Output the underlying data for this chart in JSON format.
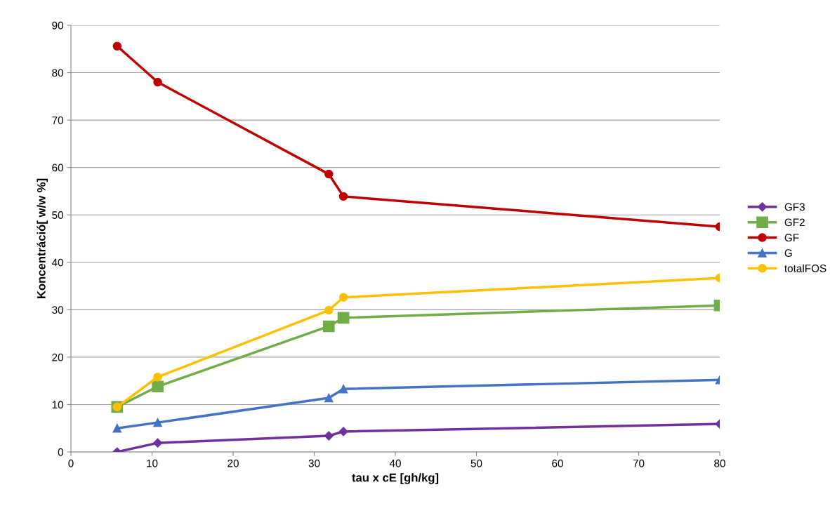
{
  "chart_data": {
    "type": "line",
    "xlabel": "tau x cE [gh/kg]",
    "ylabel": "Koncentráció[ w/w %]",
    "xlim": [
      0,
      80
    ],
    "xticks": [
      0,
      10,
      20,
      30,
      40,
      50,
      60,
      70,
      80
    ],
    "ylim": [
      0,
      90
    ],
    "yticks": [
      0,
      10,
      20,
      30,
      40,
      50,
      60,
      70,
      80,
      90
    ],
    "grid": "y",
    "legend": "right",
    "series": [
      {
        "name": "GF3",
        "color": "#7030a0",
        "marker": "diamond",
        "x": [
          5.7,
          10.7,
          31.8,
          33.6,
          80
        ],
        "values": [
          0,
          1.9,
          3.4,
          4.3,
          5.9
        ]
      },
      {
        "name": "GF2",
        "color": "#70ad47",
        "marker": "square",
        "x": [
          5.7,
          10.7,
          31.8,
          33.6,
          80
        ],
        "values": [
          9.5,
          13.8,
          26.5,
          28.3,
          30.9
        ]
      },
      {
        "name": "GF",
        "color": "#c00000",
        "marker": "circle",
        "x": [
          5.7,
          10.7,
          31.8,
          33.6,
          80
        ],
        "values": [
          85.6,
          78.0,
          58.6,
          53.9,
          47.5
        ]
      },
      {
        "name": "G",
        "color": "#4472c4",
        "marker": "triangle",
        "x": [
          5.7,
          10.7,
          31.8,
          33.6,
          80
        ],
        "values": [
          5.0,
          6.2,
          11.4,
          13.3,
          15.2
        ]
      },
      {
        "name": "totalFOS",
        "color": "#ffc000",
        "marker": "circle",
        "x": [
          5.7,
          10.7,
          31.8,
          33.6,
          80
        ],
        "values": [
          9.5,
          15.8,
          29.9,
          32.6,
          36.7
        ]
      }
    ]
  }
}
